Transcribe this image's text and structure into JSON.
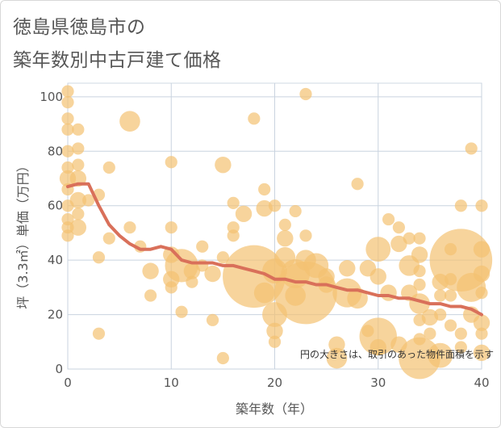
{
  "title_line1": "徳島県徳島市の",
  "title_line2": "築年数別中古戸建て価格",
  "chart_data": {
    "type": "scatter",
    "title": "徳島県徳島市の 築年数別中古戸建て価格",
    "xlabel": "築年数（年）",
    "ylabel": "坪（3.3㎡）単価（万円）",
    "xlim": [
      0,
      40
    ],
    "ylim": [
      0,
      105
    ],
    "xticks": [
      "0",
      "10",
      "20",
      "30",
      "40"
    ],
    "yticks": [
      "0",
      "20",
      "40",
      "60",
      "80",
      "100"
    ],
    "grid": true,
    "annotation": "円の大きさは、取引のあった物件面積を示す",
    "colors": {
      "bubble": "#f3c272",
      "trend": "#d9705a"
    },
    "trend_line": {
      "x": [
        0,
        1,
        2,
        3,
        4,
        5,
        6,
        7,
        8,
        9,
        10,
        11,
        12,
        13,
        14,
        15,
        16,
        17,
        18,
        19,
        20,
        21,
        22,
        23,
        24,
        25,
        26,
        27,
        28,
        29,
        30,
        31,
        32,
        33,
        34,
        35,
        36,
        37,
        38,
        39,
        40
      ],
      "y": [
        67,
        68,
        68,
        60,
        53,
        49,
        46,
        44,
        44,
        45,
        44,
        40,
        39,
        39,
        39,
        38,
        38,
        37,
        36,
        35,
        33,
        33,
        32,
        32,
        31,
        31,
        30,
        29,
        29,
        28,
        27,
        27,
        26,
        26,
        25,
        24,
        24,
        23,
        23,
        22,
        20
      ]
    },
    "points": [
      {
        "x": 0,
        "y": 102,
        "s": 2
      },
      {
        "x": 0,
        "y": 98,
        "s": 2
      },
      {
        "x": 0,
        "y": 92,
        "s": 2
      },
      {
        "x": 0,
        "y": 88,
        "s": 2
      },
      {
        "x": 0,
        "y": 80,
        "s": 2
      },
      {
        "x": 0,
        "y": 74,
        "s": 2
      },
      {
        "x": 0,
        "y": 70,
        "s": 3
      },
      {
        "x": 0,
        "y": 66,
        "s": 2
      },
      {
        "x": 0,
        "y": 60,
        "s": 2
      },
      {
        "x": 0,
        "y": 55,
        "s": 2
      },
      {
        "x": 0,
        "y": 52,
        "s": 2
      },
      {
        "x": 0,
        "y": 49,
        "s": 2
      },
      {
        "x": 1,
        "y": 88,
        "s": 2
      },
      {
        "x": 1,
        "y": 81,
        "s": 2
      },
      {
        "x": 1,
        "y": 75,
        "s": 2
      },
      {
        "x": 1,
        "y": 70,
        "s": 3
      },
      {
        "x": 1,
        "y": 62,
        "s": 3
      },
      {
        "x": 1,
        "y": 57,
        "s": 2
      },
      {
        "x": 1,
        "y": 52,
        "s": 3
      },
      {
        "x": 2,
        "y": 62,
        "s": 2
      },
      {
        "x": 3,
        "y": 64,
        "s": 2
      },
      {
        "x": 3,
        "y": 41,
        "s": 2
      },
      {
        "x": 3,
        "y": 13,
        "s": 2
      },
      {
        "x": 4,
        "y": 74,
        "s": 2
      },
      {
        "x": 4,
        "y": 48,
        "s": 2
      },
      {
        "x": 6,
        "y": 91,
        "s": 4
      },
      {
        "x": 6,
        "y": 52,
        "s": 2
      },
      {
        "x": 7,
        "y": 45,
        "s": 2
      },
      {
        "x": 8,
        "y": 36,
        "s": 3
      },
      {
        "x": 8,
        "y": 27,
        "s": 2
      },
      {
        "x": 10,
        "y": 76,
        "s": 2
      },
      {
        "x": 10,
        "y": 52,
        "s": 2
      },
      {
        "x": 10,
        "y": 42,
        "s": 3
      },
      {
        "x": 10,
        "y": 33,
        "s": 3
      },
      {
        "x": 10,
        "y": 30,
        "s": 2
      },
      {
        "x": 11,
        "y": 38,
        "s": 7
      },
      {
        "x": 11,
        "y": 21,
        "s": 2
      },
      {
        "x": 12,
        "y": 36,
        "s": 3
      },
      {
        "x": 12,
        "y": 32,
        "s": 2
      },
      {
        "x": 13,
        "y": 45,
        "s": 2
      },
      {
        "x": 13,
        "y": 38,
        "s": 2
      },
      {
        "x": 14,
        "y": 35,
        "s": 3
      },
      {
        "x": 14,
        "y": 18,
        "s": 2
      },
      {
        "x": 15,
        "y": 75,
        "s": 3
      },
      {
        "x": 15,
        "y": 41,
        "s": 2
      },
      {
        "x": 15,
        "y": 4,
        "s": 2
      },
      {
        "x": 16,
        "y": 61,
        "s": 2
      },
      {
        "x": 16,
        "y": 52,
        "s": 2
      },
      {
        "x": 16,
        "y": 49,
        "s": 2
      },
      {
        "x": 17,
        "y": 57,
        "s": 3
      },
      {
        "x": 18,
        "y": 92,
        "s": 2
      },
      {
        "x": 18,
        "y": 34,
        "s": 14
      },
      {
        "x": 19,
        "y": 66,
        "s": 2
      },
      {
        "x": 19,
        "y": 59,
        "s": 3
      },
      {
        "x": 19,
        "y": 28,
        "s": 4
      },
      {
        "x": 20,
        "y": 60,
        "s": 2
      },
      {
        "x": 20,
        "y": 36,
        "s": 5
      },
      {
        "x": 20,
        "y": 20,
        "s": 5
      },
      {
        "x": 20,
        "y": 14,
        "s": 3
      },
      {
        "x": 20,
        "y": 10,
        "s": 2
      },
      {
        "x": 21,
        "y": 53,
        "s": 2
      },
      {
        "x": 21,
        "y": 48,
        "s": 3
      },
      {
        "x": 21,
        "y": 41,
        "s": 4
      },
      {
        "x": 22,
        "y": 58,
        "s": 2
      },
      {
        "x": 22,
        "y": 35,
        "s": 6
      },
      {
        "x": 22,
        "y": 27,
        "s": 4
      },
      {
        "x": 23,
        "y": 101,
        "s": 2
      },
      {
        "x": 23,
        "y": 49,
        "s": 2
      },
      {
        "x": 23,
        "y": 40,
        "s": 4
      },
      {
        "x": 23,
        "y": 28,
        "s": 14
      },
      {
        "x": 24,
        "y": 38,
        "s": 5
      },
      {
        "x": 25,
        "y": 34,
        "s": 3
      },
      {
        "x": 25,
        "y": 31,
        "s": 3
      },
      {
        "x": 26,
        "y": 9,
        "s": 3
      },
      {
        "x": 26,
        "y": 4,
        "s": 4
      },
      {
        "x": 27,
        "y": 37,
        "s": 3
      },
      {
        "x": 27,
        "y": 28,
        "s": 6
      },
      {
        "x": 28,
        "y": 68,
        "s": 2
      },
      {
        "x": 28,
        "y": 26,
        "s": 4
      },
      {
        "x": 29,
        "y": 37,
        "s": 3
      },
      {
        "x": 29,
        "y": 14,
        "s": 2
      },
      {
        "x": 30,
        "y": 44,
        "s": 5
      },
      {
        "x": 30,
        "y": 34,
        "s": 3
      },
      {
        "x": 30,
        "y": 12,
        "s": 8
      },
      {
        "x": 30,
        "y": 8,
        "s": 3
      },
      {
        "x": 31,
        "y": 55,
        "s": 2
      },
      {
        "x": 31,
        "y": 28,
        "s": 3
      },
      {
        "x": 32,
        "y": 52,
        "s": 2
      },
      {
        "x": 32,
        "y": 46,
        "s": 3
      },
      {
        "x": 32,
        "y": 9,
        "s": 3
      },
      {
        "x": 33,
        "y": 48,
        "s": 2
      },
      {
        "x": 33,
        "y": 38,
        "s": 4
      },
      {
        "x": 33,
        "y": 28,
        "s": 3
      },
      {
        "x": 34,
        "y": 48,
        "s": 2
      },
      {
        "x": 34,
        "y": 42,
        "s": 3
      },
      {
        "x": 34,
        "y": 36,
        "s": 2
      },
      {
        "x": 34,
        "y": 31,
        "s": 2
      },
      {
        "x": 34,
        "y": 24,
        "s": 4
      },
      {
        "x": 34,
        "y": 18,
        "s": 2
      },
      {
        "x": 34,
        "y": 11,
        "s": 2
      },
      {
        "x": 34,
        "y": 4,
        "s": 9
      },
      {
        "x": 35,
        "y": 19,
        "s": 3
      },
      {
        "x": 35,
        "y": 13,
        "s": 2
      },
      {
        "x": 36,
        "y": 32,
        "s": 3
      },
      {
        "x": 36,
        "y": 27,
        "s": 2
      },
      {
        "x": 36,
        "y": 20,
        "s": 2
      },
      {
        "x": 36,
        "y": 5,
        "s": 5
      },
      {
        "x": 37,
        "y": 44,
        "s": 2
      },
      {
        "x": 37,
        "y": 33,
        "s": 2
      },
      {
        "x": 37,
        "y": 27,
        "s": 2
      },
      {
        "x": 37,
        "y": 16,
        "s": 2
      },
      {
        "x": 38,
        "y": 60,
        "s": 2
      },
      {
        "x": 38,
        "y": 40,
        "s": 14
      },
      {
        "x": 38,
        "y": 13,
        "s": 2
      },
      {
        "x": 38,
        "y": 8,
        "s": 2
      },
      {
        "x": 39,
        "y": 81,
        "s": 2
      },
      {
        "x": 39,
        "y": 30,
        "s": 6
      },
      {
        "x": 39,
        "y": 20,
        "s": 3
      },
      {
        "x": 40,
        "y": 60,
        "s": 2
      },
      {
        "x": 40,
        "y": 44,
        "s": 3
      },
      {
        "x": 40,
        "y": 35,
        "s": 3
      },
      {
        "x": 40,
        "y": 28,
        "s": 2
      },
      {
        "x": 40,
        "y": 17,
        "s": 3
      },
      {
        "x": 40,
        "y": 13,
        "s": 2
      },
      {
        "x": 40,
        "y": 6,
        "s": 3
      }
    ]
  }
}
